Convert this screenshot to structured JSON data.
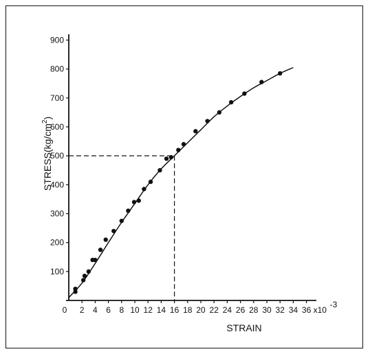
{
  "chart_data": {
    "type": "scatter",
    "xlabel": "STRAIN",
    "ylabel": "STRESS(kg/cm",
    "ylabel_sup": "2",
    "ylabel_close": ")",
    "x_tick_labels": [
      "0",
      "2",
      "4",
      "6",
      "8",
      "10",
      "12",
      "14",
      "16",
      "18",
      "20",
      "22",
      "24",
      "26",
      "28",
      "30",
      "32",
      "34",
      "36"
    ],
    "x_exponent": "x10",
    "x_exponent_sup": "-3",
    "y_tick_labels": [
      "100",
      "200",
      "300",
      "400",
      "500",
      "600",
      "700",
      "800",
      "900"
    ],
    "xlim": [
      0,
      37.5
    ],
    "ylim": [
      0,
      920
    ],
    "grid": false,
    "points": [
      {
        "x": 1.0,
        "y": 30
      },
      {
        "x": 1.0,
        "y": 40
      },
      {
        "x": 2.2,
        "y": 70
      },
      {
        "x": 2.4,
        "y": 85
      },
      {
        "x": 3.0,
        "y": 100
      },
      {
        "x": 3.6,
        "y": 140
      },
      {
        "x": 4.0,
        "y": 140
      },
      {
        "x": 4.8,
        "y": 175
      },
      {
        "x": 5.6,
        "y": 210
      },
      {
        "x": 6.8,
        "y": 240
      },
      {
        "x": 8.0,
        "y": 275
      },
      {
        "x": 9.0,
        "y": 310
      },
      {
        "x": 9.9,
        "y": 340
      },
      {
        "x": 10.6,
        "y": 345
      },
      {
        "x": 11.4,
        "y": 385
      },
      {
        "x": 12.4,
        "y": 410
      },
      {
        "x": 13.8,
        "y": 450
      },
      {
        "x": 14.8,
        "y": 490
      },
      {
        "x": 15.5,
        "y": 495
      },
      {
        "x": 16.6,
        "y": 520
      },
      {
        "x": 17.4,
        "y": 540
      },
      {
        "x": 19.2,
        "y": 585
      },
      {
        "x": 21.0,
        "y": 620
      },
      {
        "x": 22.8,
        "y": 650
      },
      {
        "x": 24.6,
        "y": 685
      },
      {
        "x": 26.6,
        "y": 715
      },
      {
        "x": 29.2,
        "y": 755
      },
      {
        "x": 32.0,
        "y": 785
      }
    ],
    "fit_curve": [
      [
        0,
        10
      ],
      [
        2,
        60
      ],
      [
        4,
        128
      ],
      [
        6,
        200
      ],
      [
        8,
        270
      ],
      [
        10,
        335
      ],
      [
        12,
        400
      ],
      [
        14,
        455
      ],
      [
        16,
        500
      ],
      [
        18,
        545
      ],
      [
        20,
        590
      ],
      [
        22,
        635
      ],
      [
        24,
        672
      ],
      [
        26,
        705
      ],
      [
        28,
        735
      ],
      [
        30,
        760
      ],
      [
        32,
        785
      ],
      [
        34,
        805
      ]
    ],
    "reference_point": {
      "x": 16,
      "y": 500
    }
  }
}
